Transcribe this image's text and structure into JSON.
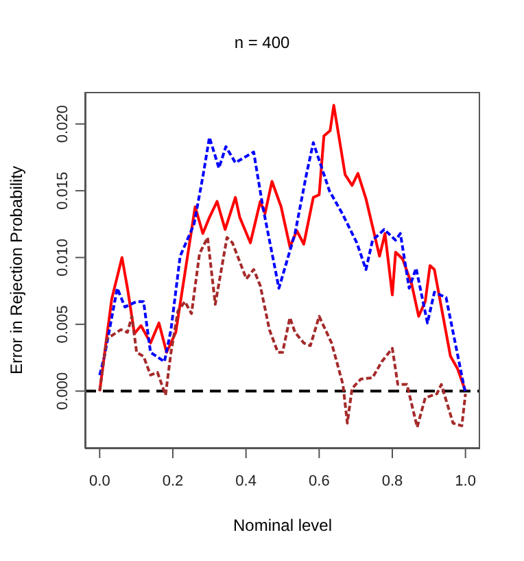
{
  "chart_data": {
    "type": "line",
    "title": "n = 400",
    "xlabel": "Nominal level",
    "ylabel": "Error in Rejection Probability",
    "xlim": [
      -0.04,
      1.04
    ],
    "ylim": [
      -0.0043,
      0.0224
    ],
    "xticks": [
      {
        "value": 0,
        "label": "0.0"
      },
      {
        "value": 0.2,
        "label": "0.2"
      },
      {
        "value": 0.4,
        "label": "0.4"
      },
      {
        "value": 0.6,
        "label": "0.6"
      },
      {
        "value": 0.8,
        "label": "0.8"
      },
      {
        "value": 1,
        "label": "1.0"
      }
    ],
    "yticks": [
      {
        "value": 0,
        "label": "0.000"
      },
      {
        "value": 0.005,
        "label": "0.005"
      },
      {
        "value": 0.01,
        "label": "0.010"
      },
      {
        "value": 0.015,
        "label": "0.015"
      },
      {
        "value": 0.02,
        "label": "0.020"
      }
    ],
    "grid": false,
    "legend": false,
    "marker": "none",
    "ref_lines": [
      {
        "axis": "y",
        "value": 0,
        "color": "#000000",
        "line_style": "dashed"
      }
    ],
    "series": [
      {
        "color": "#ff0000",
        "line_style": "solid",
        "x": [
          0,
          0.033,
          0.061,
          0.076,
          0.095,
          0.113,
          0.139,
          0.162,
          0.183,
          0.208,
          0.261,
          0.282,
          0.3,
          0.321,
          0.343,
          0.371,
          0.383,
          0.412,
          0.439,
          0.452,
          0.471,
          0.496,
          0.52,
          0.539,
          0.558,
          0.584,
          0.6,
          0.613,
          0.63,
          0.64,
          0.671,
          0.69,
          0.706,
          0.728,
          0.765,
          0.78,
          0.8,
          0.809,
          0.828,
          0.853,
          0.872,
          0.89,
          0.903,
          0.915,
          0.959,
          0.978,
          1
        ],
        "values": [
          0,
          0.0069,
          0.01,
          0.0077,
          0.0043,
          0.0049,
          0.0036,
          0.0051,
          0.0029,
          0.0044,
          0.0138,
          0.0118,
          0.013,
          0.0142,
          0.0121,
          0.0145,
          0.013,
          0.0111,
          0.0142,
          0.0133,
          0.0157,
          0.0138,
          0.0108,
          0.012,
          0.011,
          0.0145,
          0.0147,
          0.0191,
          0.0195,
          0.0214,
          0.0162,
          0.0154,
          0.0163,
          0.0144,
          0.0101,
          0.0118,
          0.0072,
          0.0104,
          0.0099,
          0.008,
          0.0056,
          0.0067,
          0.0094,
          0.0091,
          0.0026,
          0.0017,
          0
        ]
      },
      {
        "color": "#0000ff",
        "line_style": "dashed",
        "x": [
          0,
          0.013,
          0.048,
          0.069,
          0.101,
          0.12,
          0.139,
          0.177,
          0.195,
          0.22,
          0.258,
          0.283,
          0.3,
          0.326,
          0.345,
          0.371,
          0.421,
          0.446,
          0.49,
          0.534,
          0.565,
          0.584,
          0.628,
          0.665,
          0.703,
          0.728,
          0.746,
          0.778,
          0.809,
          0.822,
          0.846,
          0.865,
          0.896,
          0.915,
          0.947,
          0.997,
          1
        ],
        "values": [
          0.0012,
          0.0026,
          0.0077,
          0.0063,
          0.0067,
          0.0067,
          0.0029,
          0.0022,
          0.0046,
          0.0101,
          0.0125,
          0.0162,
          0.019,
          0.0167,
          0.0183,
          0.0171,
          0.0179,
          0.0138,
          0.0077,
          0.0118,
          0.0162,
          0.0186,
          0.015,
          0.0132,
          0.0111,
          0.0091,
          0.0113,
          0.0121,
          0.0113,
          0.0118,
          0.0077,
          0.0092,
          0.0051,
          0.0074,
          0.007,
          0.0002,
          0
        ]
      },
      {
        "color": "#a52a2a",
        "line_style": "dashed",
        "x": [
          0,
          0.019,
          0.058,
          0.076,
          0.088,
          0.101,
          0.12,
          0.139,
          0.158,
          0.18,
          0.195,
          0.214,
          0.233,
          0.251,
          0.273,
          0.295,
          0.316,
          0.348,
          0.363,
          0.401,
          0.421,
          0.439,
          0.464,
          0.487,
          0.5,
          0.52,
          0.534,
          0.558,
          0.576,
          0.6,
          0.634,
          0.665,
          0.677,
          0.69,
          0.714,
          0.746,
          0.771,
          0.8,
          0.815,
          0.84,
          0.868,
          0.89,
          0.922,
          0.934,
          0.966,
          0.99,
          1
        ],
        "values": [
          0,
          0.0039,
          0.0046,
          0.0044,
          0.0056,
          0.0029,
          0.0026,
          0.0012,
          0.0014,
          -0.0003,
          0.0029,
          0.006,
          0.0067,
          0.0058,
          0.0103,
          0.0115,
          0.0065,
          0.0115,
          0.0111,
          0.0084,
          0.0091,
          0.0079,
          0.0046,
          0.0029,
          0.0029,
          0.0055,
          0.0044,
          0.0036,
          0.0034,
          0.0056,
          0.0036,
          0.0005,
          -0.0024,
          0.0002,
          0.0009,
          0.001,
          0.0022,
          0.0032,
          0.0005,
          0.0005,
          -0.0027,
          -0.0005,
          -0.0002,
          0.0005,
          -0.0024,
          -0.0026,
          -0.0002
        ]
      }
    ]
  }
}
